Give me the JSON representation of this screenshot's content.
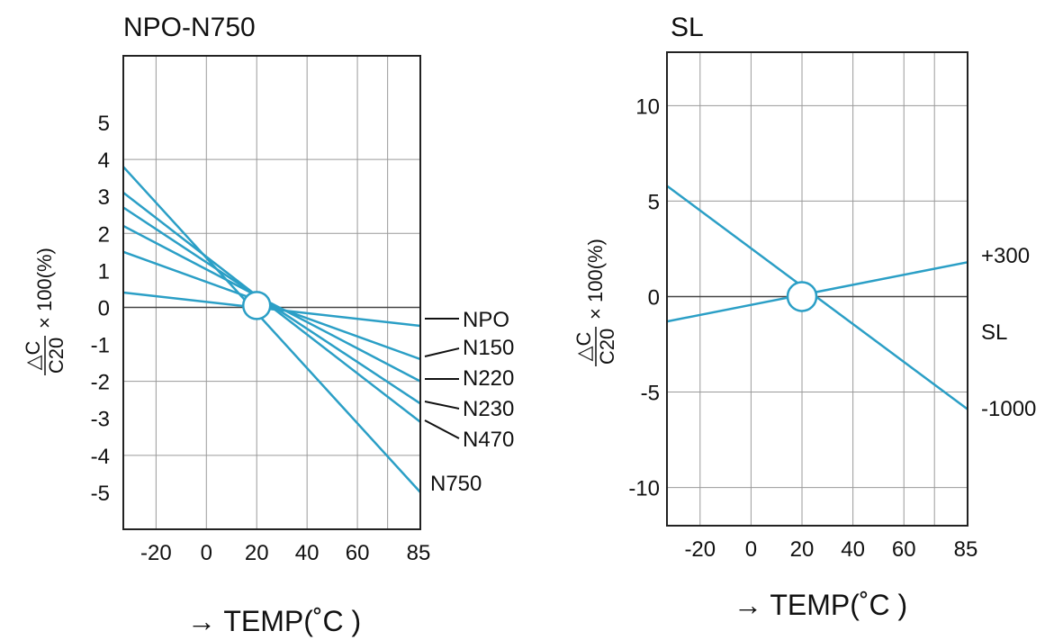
{
  "chart_data": [
    {
      "type": "line",
      "title": "NPO-N750",
      "xlabel": "→ TEMP(˚C )",
      "ylabel_fraction": {
        "numerator": "△C",
        "denominator": "C20",
        "suffix": "× 100(%)"
      },
      "xlim": [
        -33,
        85
      ],
      "ylim": [
        -6,
        6.8
      ],
      "x_ticks": [
        {
          "value": -20,
          "label": "-20"
        },
        {
          "value": 0,
          "label": "0"
        },
        {
          "value": 20,
          "label": "20"
        },
        {
          "value": 40,
          "label": "40"
        },
        {
          "value": 60,
          "label": "60"
        },
        {
          "value": 85,
          "label": "85"
        }
      ],
      "x_grid": [
        -20,
        0,
        20,
        40,
        60,
        72
      ],
      "y_ticks": [
        {
          "value": 5,
          "label": "5"
        },
        {
          "value": 4,
          "label": "4"
        },
        {
          "value": 3,
          "label": "3"
        },
        {
          "value": 2,
          "label": "2"
        },
        {
          "value": 1,
          "label": "1"
        },
        {
          "value": 0,
          "label": "0"
        },
        {
          "value": -1,
          "label": "-1"
        },
        {
          "value": -2,
          "label": "-2"
        },
        {
          "value": -3,
          "label": "-3"
        },
        {
          "value": -4,
          "label": "-4"
        },
        {
          "value": -5,
          "label": "-5"
        }
      ],
      "y_grid": [
        4,
        2,
        0,
        -2,
        -4
      ],
      "ref_point": {
        "x": 20,
        "y": 0.05
      },
      "series": [
        {
          "name": "NPO",
          "x": [
            -33,
            85
          ],
          "y": [
            0.4,
            -0.5
          ]
        },
        {
          "name": "N150",
          "x": [
            -33,
            85
          ],
          "y": [
            1.5,
            -1.4
          ]
        },
        {
          "name": "N220",
          "x": [
            -33,
            85
          ],
          "y": [
            2.2,
            -2.0
          ]
        },
        {
          "name": "N230",
          "x": [
            -33,
            85
          ],
          "y": [
            2.7,
            -2.6
          ]
        },
        {
          "name": "N470",
          "x": [
            -33,
            85
          ],
          "y": [
            3.1,
            -3.1
          ]
        },
        {
          "name": "N750",
          "x": [
            -33,
            85
          ],
          "y": [
            3.8,
            -5.0
          ]
        }
      ]
    },
    {
      "type": "line",
      "title": "SL",
      "xlabel": "→ TEMP(˚C )",
      "ylabel_fraction": {
        "numerator": "△C",
        "denominator": "C20",
        "suffix": "× 100(%)"
      },
      "xlim": [
        -33,
        85
      ],
      "ylim": [
        -12,
        12.8
      ],
      "x_ticks": [
        {
          "value": -20,
          "label": "-20"
        },
        {
          "value": 0,
          "label": "0"
        },
        {
          "value": 20,
          "label": "20"
        },
        {
          "value": 40,
          "label": "40"
        },
        {
          "value": 60,
          "label": "60"
        },
        {
          "value": 85,
          "label": "85"
        }
      ],
      "x_grid": [
        -20,
        0,
        20,
        40,
        60,
        72
      ],
      "y_ticks": [
        {
          "value": 10,
          "label": "10"
        },
        {
          "value": 5,
          "label": "5"
        },
        {
          "value": 0,
          "label": "0"
        },
        {
          "value": -5,
          "label": "-5"
        },
        {
          "value": -10,
          "label": "-10"
        }
      ],
      "y_grid": [
        10,
        5,
        0,
        -5,
        -10
      ],
      "ref_point": {
        "x": 20,
        "y": 0
      },
      "series": [
        {
          "name": "+300",
          "x": [
            -33,
            85
          ],
          "y": [
            -1.3,
            1.8
          ]
        },
        {
          "name": "-1000",
          "x": [
            -33,
            85
          ],
          "y": [
            5.8,
            -5.9
          ]
        }
      ],
      "side_labels": [
        "+300",
        "SL",
        "-1000"
      ]
    }
  ]
}
